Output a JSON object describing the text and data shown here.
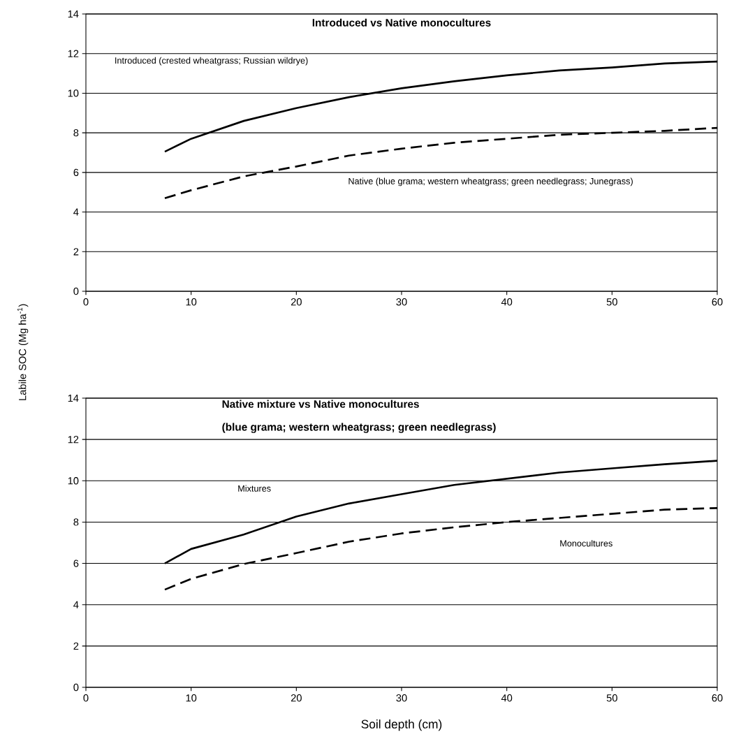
{
  "chart_data": [
    {
      "type": "line",
      "title": "Introduced vs Native monocultures",
      "ylabel": "Labile SOC (Mg ha$^{-1}$)",
      "xlim": [
        0,
        60
      ],
      "ylim": [
        0,
        14
      ],
      "xticks": [
        0,
        10,
        20,
        30,
        40,
        50,
        60
      ],
      "yticks": [
        0,
        2,
        4,
        6,
        8,
        10,
        12,
        14
      ],
      "grid": "y",
      "x": [
        7.5,
        10,
        15,
        20,
        25,
        30,
        35,
        40,
        45,
        50,
        55,
        60
      ],
      "annotations": [
        "Introduced (crested wheatgrass; Russian wildrye)",
        "Native (blue grama; western wheatgrass; green needlegrass; Junegrass)"
      ],
      "series": [
        {
          "color": "#000000",
          "line_style": "solid",
          "values": [
            7.05,
            7.7,
            8.6,
            9.25,
            9.8,
            10.25,
            10.6,
            10.9,
            11.15,
            11.3,
            11.5,
            11.6
          ]
        },
        {
          "color": "#000000",
          "line_style": "dashed",
          "values": [
            4.7,
            5.1,
            5.8,
            6.3,
            6.85,
            7.2,
            7.5,
            7.7,
            7.9,
            8.0,
            8.1,
            8.25
          ]
        }
      ]
    },
    {
      "type": "line",
      "title": "Native mixture vs Native monocultures",
      "subtitle": "(blue grama; western wheatgrass; green needlegrass)",
      "xlabel": "Soil depth (cm)",
      "xlim": [
        0,
        60
      ],
      "ylim": [
        0,
        14
      ],
      "xticks": [
        0,
        10,
        20,
        30,
        40,
        50,
        60
      ],
      "yticks": [
        0,
        2,
        4,
        6,
        8,
        10,
        12,
        14
      ],
      "grid": "y",
      "x": [
        7.5,
        10,
        15,
        20,
        25,
        30,
        35,
        40,
        45,
        50,
        55,
        60
      ],
      "annotations": [
        "Mixtures",
        "Monocultures"
      ],
      "series": [
        {
          "color": "#000000",
          "line_style": "solid",
          "values": [
            6.0,
            6.7,
            7.4,
            8.27,
            8.9,
            9.35,
            9.8,
            10.1,
            10.4,
            10.6,
            10.8,
            10.97
          ]
        },
        {
          "color": "#000000",
          "line_style": "dashed",
          "values": [
            4.73,
            5.25,
            5.97,
            6.5,
            7.05,
            7.45,
            7.75,
            8.0,
            8.2,
            8.4,
            8.6,
            8.68
          ]
        }
      ]
    }
  ]
}
